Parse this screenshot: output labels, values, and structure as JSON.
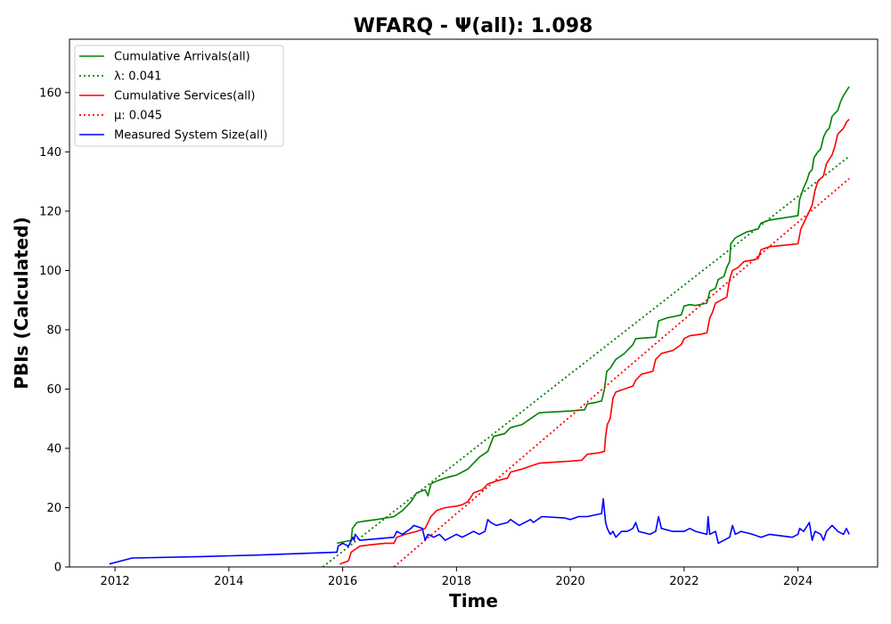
{
  "chart_data": {
    "type": "line",
    "title": "WFARQ -  Ψ(all): 1.098",
    "xlabel": "Time",
    "ylabel": "PBIs (Calculated)",
    "xlim": [
      2011.2,
      2025.4
    ],
    "ylim": [
      0,
      178
    ],
    "xticks": [
      2012,
      2014,
      2016,
      2018,
      2020,
      2022,
      2024
    ],
    "yticks": [
      0,
      20,
      40,
      60,
      80,
      100,
      120,
      140,
      160
    ],
    "grid": false,
    "legend_position": "top-left",
    "series": [
      {
        "name": "Cumulative Arrivals(all)",
        "color": "#008000",
        "style": "solid",
        "points": [
          [
            2015.9,
            8
          ],
          [
            2016.15,
            9
          ],
          [
            2016.17,
            13
          ],
          [
            2016.25,
            15
          ],
          [
            2016.4,
            15.5
          ],
          [
            2016.6,
            16
          ],
          [
            2016.9,
            17
          ],
          [
            2017.05,
            19
          ],
          [
            2017.2,
            22
          ],
          [
            2017.3,
            25
          ],
          [
            2017.45,
            26
          ],
          [
            2017.5,
            24
          ],
          [
            2017.55,
            28
          ],
          [
            2017.65,
            29
          ],
          [
            2017.8,
            30
          ],
          [
            2018.0,
            31
          ],
          [
            2018.2,
            33
          ],
          [
            2018.3,
            35
          ],
          [
            2018.4,
            37
          ],
          [
            2018.55,
            39
          ],
          [
            2018.65,
            44
          ],
          [
            2018.85,
            45
          ],
          [
            2018.95,
            47
          ],
          [
            2019.15,
            48
          ],
          [
            2019.3,
            50
          ],
          [
            2019.45,
            52
          ],
          [
            2019.6,
            52.2
          ],
          [
            2020.0,
            52.6
          ],
          [
            2020.25,
            53
          ],
          [
            2020.3,
            55
          ],
          [
            2020.45,
            55.5
          ],
          [
            2020.55,
            56
          ],
          [
            2020.6,
            60
          ],
          [
            2020.62,
            63
          ],
          [
            2020.64,
            66
          ],
          [
            2020.7,
            67
          ],
          [
            2020.8,
            70
          ],
          [
            2020.95,
            72
          ],
          [
            2021.1,
            75
          ],
          [
            2021.15,
            77
          ],
          [
            2021.5,
            77.5
          ],
          [
            2021.55,
            83
          ],
          [
            2021.7,
            84
          ],
          [
            2021.95,
            85
          ],
          [
            2022.0,
            88
          ],
          [
            2022.1,
            88.5
          ],
          [
            2022.2,
            88.2
          ],
          [
            2022.4,
            89
          ],
          [
            2022.45,
            93
          ],
          [
            2022.55,
            94
          ],
          [
            2022.6,
            97
          ],
          [
            2022.7,
            98
          ],
          [
            2022.75,
            101
          ],
          [
            2022.8,
            103
          ],
          [
            2022.82,
            109
          ],
          [
            2022.9,
            111
          ],
          [
            2023.0,
            112
          ],
          [
            2023.1,
            113
          ],
          [
            2023.3,
            114
          ],
          [
            2023.35,
            116
          ],
          [
            2023.5,
            117
          ],
          [
            2024.0,
            118.5
          ],
          [
            2024.03,
            124
          ],
          [
            2024.1,
            128
          ],
          [
            2024.15,
            130
          ],
          [
            2024.2,
            133
          ],
          [
            2024.25,
            134
          ],
          [
            2024.28,
            138
          ],
          [
            2024.35,
            140
          ],
          [
            2024.4,
            141
          ],
          [
            2024.45,
            145
          ],
          [
            2024.5,
            147
          ],
          [
            2024.55,
            148
          ],
          [
            2024.6,
            152
          ],
          [
            2024.7,
            154
          ],
          [
            2024.75,
            157
          ],
          [
            2024.8,
            159
          ],
          [
            2024.9,
            162
          ]
        ]
      },
      {
        "name": "λ: 0.041",
        "color": "#008000",
        "style": "dotted",
        "points": [
          [
            2015.65,
            0
          ],
          [
            2024.9,
            138.5
          ]
        ]
      },
      {
        "name": "Cumulative Services(all)",
        "color": "#ff0000",
        "style": "solid",
        "points": [
          [
            2015.95,
            1
          ],
          [
            2016.1,
            2
          ],
          [
            2016.15,
            5
          ],
          [
            2016.3,
            7
          ],
          [
            2016.5,
            7.5
          ],
          [
            2016.75,
            8
          ],
          [
            2016.9,
            8
          ],
          [
            2016.95,
            10
          ],
          [
            2017.1,
            11
          ],
          [
            2017.3,
            12
          ],
          [
            2017.45,
            13
          ],
          [
            2017.55,
            17
          ],
          [
            2017.65,
            19
          ],
          [
            2017.8,
            20
          ],
          [
            2018.0,
            20.5
          ],
          [
            2018.1,
            21
          ],
          [
            2018.2,
            22
          ],
          [
            2018.3,
            25
          ],
          [
            2018.45,
            26
          ],
          [
            2018.55,
            28
          ],
          [
            2018.7,
            29
          ],
          [
            2018.9,
            30
          ],
          [
            2018.95,
            32
          ],
          [
            2019.15,
            33
          ],
          [
            2019.3,
            34
          ],
          [
            2019.45,
            35
          ],
          [
            2019.6,
            35.2
          ],
          [
            2020.0,
            35.7
          ],
          [
            2020.2,
            36
          ],
          [
            2020.3,
            38
          ],
          [
            2020.5,
            38.5
          ],
          [
            2020.6,
            39
          ],
          [
            2020.62,
            44
          ],
          [
            2020.65,
            48
          ],
          [
            2020.7,
            50
          ],
          [
            2020.75,
            57
          ],
          [
            2020.8,
            59
          ],
          [
            2020.95,
            60
          ],
          [
            2021.1,
            61
          ],
          [
            2021.15,
            63
          ],
          [
            2021.25,
            65
          ],
          [
            2021.45,
            66
          ],
          [
            2021.5,
            70
          ],
          [
            2021.6,
            72
          ],
          [
            2021.8,
            73
          ],
          [
            2021.95,
            75
          ],
          [
            2022.0,
            77
          ],
          [
            2022.1,
            78
          ],
          [
            2022.3,
            78.5
          ],
          [
            2022.4,
            79
          ],
          [
            2022.45,
            84
          ],
          [
            2022.5,
            86
          ],
          [
            2022.55,
            89
          ],
          [
            2022.65,
            90
          ],
          [
            2022.75,
            91
          ],
          [
            2022.8,
            97
          ],
          [
            2022.85,
            100
          ],
          [
            2022.95,
            101
          ],
          [
            2023.05,
            103
          ],
          [
            2023.2,
            103.5
          ],
          [
            2023.3,
            104
          ],
          [
            2023.35,
            107
          ],
          [
            2023.5,
            108
          ],
          [
            2024.0,
            109
          ],
          [
            2024.05,
            114
          ],
          [
            2024.1,
            116
          ],
          [
            2024.2,
            120
          ],
          [
            2024.25,
            122
          ],
          [
            2024.3,
            127
          ],
          [
            2024.35,
            130
          ],
          [
            2024.45,
            132
          ],
          [
            2024.5,
            136
          ],
          [
            2024.6,
            139
          ],
          [
            2024.65,
            142
          ],
          [
            2024.7,
            146
          ],
          [
            2024.8,
            148
          ],
          [
            2024.85,
            150
          ],
          [
            2024.9,
            151
          ]
        ]
      },
      {
        "name": "μ: 0.045",
        "color": "#ff0000",
        "style": "dotted",
        "points": [
          [
            2016.9,
            0
          ],
          [
            2024.9,
            131
          ]
        ]
      },
      {
        "name": "Measured System Size(all)",
        "color": "#0000ff",
        "style": "solid",
        "points": [
          [
            2011.9,
            1
          ],
          [
            2012.3,
            3
          ],
          [
            2013.5,
            3.5
          ],
          [
            2014.5,
            4
          ],
          [
            2015.9,
            5
          ],
          [
            2015.92,
            7
          ],
          [
            2016.0,
            8
          ],
          [
            2016.1,
            7
          ],
          [
            2016.18,
            10
          ],
          [
            2016.2,
            9
          ],
          [
            2016.22,
            11
          ],
          [
            2016.3,
            9
          ],
          [
            2016.6,
            9.5
          ],
          [
            2016.9,
            10
          ],
          [
            2016.95,
            12
          ],
          [
            2017.05,
            11
          ],
          [
            2017.2,
            13
          ],
          [
            2017.25,
            14
          ],
          [
            2017.4,
            13
          ],
          [
            2017.45,
            9
          ],
          [
            2017.5,
            11
          ],
          [
            2017.6,
            10
          ],
          [
            2017.7,
            11
          ],
          [
            2017.8,
            9
          ],
          [
            2017.9,
            10
          ],
          [
            2018.0,
            11
          ],
          [
            2018.1,
            10
          ],
          [
            2018.2,
            11
          ],
          [
            2018.3,
            12
          ],
          [
            2018.4,
            11
          ],
          [
            2018.5,
            12
          ],
          [
            2018.55,
            16
          ],
          [
            2018.6,
            15
          ],
          [
            2018.7,
            14
          ],
          [
            2018.9,
            15
          ],
          [
            2018.95,
            16
          ],
          [
            2019.1,
            14
          ],
          [
            2019.3,
            16
          ],
          [
            2019.35,
            15
          ],
          [
            2019.5,
            17
          ],
          [
            2019.9,
            16.5
          ],
          [
            2020.0,
            16
          ],
          [
            2020.15,
            17
          ],
          [
            2020.3,
            17
          ],
          [
            2020.55,
            18
          ],
          [
            2020.58,
            23
          ],
          [
            2020.6,
            19
          ],
          [
            2020.62,
            15
          ],
          [
            2020.65,
            13
          ],
          [
            2020.7,
            11
          ],
          [
            2020.75,
            12
          ],
          [
            2020.8,
            10
          ],
          [
            2020.9,
            12
          ],
          [
            2021.0,
            12
          ],
          [
            2021.1,
            13
          ],
          [
            2021.15,
            15
          ],
          [
            2021.2,
            12
          ],
          [
            2021.4,
            11
          ],
          [
            2021.5,
            12
          ],
          [
            2021.55,
            17
          ],
          [
            2021.6,
            13
          ],
          [
            2021.8,
            12
          ],
          [
            2022.0,
            12
          ],
          [
            2022.1,
            13
          ],
          [
            2022.2,
            12
          ],
          [
            2022.4,
            11
          ],
          [
            2022.42,
            17
          ],
          [
            2022.45,
            11
          ],
          [
            2022.55,
            12
          ],
          [
            2022.6,
            8
          ],
          [
            2022.7,
            9
          ],
          [
            2022.8,
            10
          ],
          [
            2022.85,
            14
          ],
          [
            2022.9,
            11
          ],
          [
            2023.0,
            12
          ],
          [
            2023.2,
            11
          ],
          [
            2023.35,
            10
          ],
          [
            2023.5,
            11
          ],
          [
            2023.9,
            10
          ],
          [
            2024.0,
            11
          ],
          [
            2024.03,
            13
          ],
          [
            2024.1,
            12
          ],
          [
            2024.2,
            15
          ],
          [
            2024.25,
            9
          ],
          [
            2024.3,
            12
          ],
          [
            2024.4,
            11
          ],
          [
            2024.45,
            9
          ],
          [
            2024.5,
            12
          ],
          [
            2024.6,
            14
          ],
          [
            2024.7,
            12
          ],
          [
            2024.8,
            11
          ],
          [
            2024.85,
            13
          ],
          [
            2024.9,
            11
          ]
        ]
      }
    ]
  }
}
